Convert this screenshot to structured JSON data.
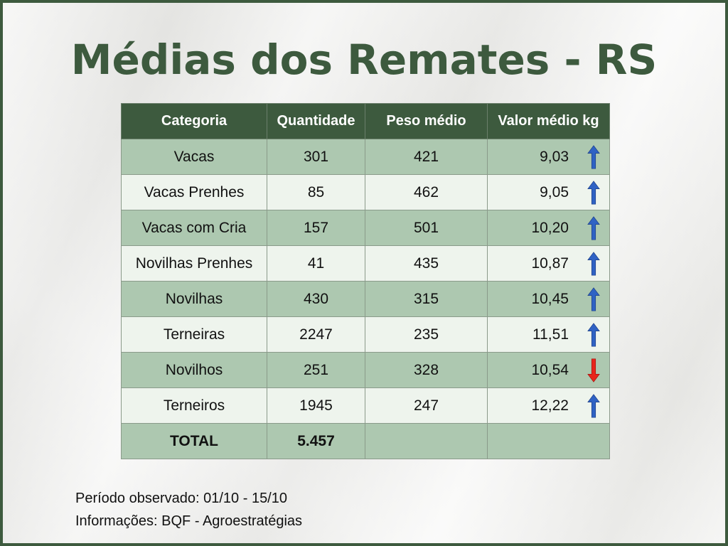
{
  "title": "Médias dos Remates - RS",
  "table": {
    "headers": [
      "Categoria",
      "Quantidade",
      "Peso médio",
      "Valor médio kg"
    ],
    "rows": [
      {
        "categoria": "Vacas",
        "quantidade": "301",
        "peso": "421",
        "valor": "9,03",
        "trend": "up"
      },
      {
        "categoria": "Vacas Prenhes",
        "quantidade": "85",
        "peso": "462",
        "valor": "9,05",
        "trend": "up"
      },
      {
        "categoria": "Vacas com Cria",
        "quantidade": "157",
        "peso": "501",
        "valor": "10,20",
        "trend": "up"
      },
      {
        "categoria": "Novilhas Prenhes",
        "quantidade": "41",
        "peso": "435",
        "valor": "10,87",
        "trend": "up"
      },
      {
        "categoria": "Novilhas",
        "quantidade": "430",
        "peso": "315",
        "valor": "10,45",
        "trend": "up"
      },
      {
        "categoria": "Terneiras",
        "quantidade": "2247",
        "peso": "235",
        "valor": "11,51",
        "trend": "up"
      },
      {
        "categoria": "Novilhos",
        "quantidade": "251",
        "peso": "328",
        "valor": "10,54",
        "trend": "down"
      },
      {
        "categoria": "Terneiros",
        "quantidade": "1945",
        "peso": "247",
        "valor": "12,22",
        "trend": "up"
      }
    ],
    "total": {
      "label": "TOTAL",
      "quantidade": "5.457"
    }
  },
  "footer": {
    "periodo": "Período observado: 01/10 - 15/10",
    "informacoes": "Informações: BQF - Agroestratégias"
  },
  "colors": {
    "title": "#3d5a3e",
    "header_bg": "#3d5a3e",
    "row_dark": "#adc8b0",
    "row_light": "#eef4ed",
    "arrow_up": "#2f62c4",
    "arrow_down": "#e8251c"
  },
  "icons": {
    "up": "arrow-up-icon",
    "down": "arrow-down-icon"
  }
}
